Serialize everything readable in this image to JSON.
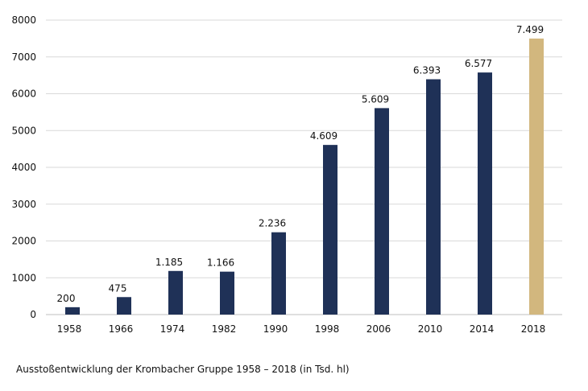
{
  "chart_data": {
    "type": "bar",
    "categories": [
      "1958",
      "1966",
      "1974",
      "1982",
      "1990",
      "1998",
      "2006",
      "2010",
      "2014",
      "2018"
    ],
    "values": [
      200,
      475,
      1185,
      1166,
      2236,
      4609,
      5609,
      6393,
      6577,
      7499
    ],
    "data_labels": [
      "200",
      "475",
      "1.185",
      "1.166",
      "2.236",
      "4.609",
      "5.609",
      "6.393",
      "6.577",
      "7.499"
    ],
    "yticks": [
      0,
      1000,
      2000,
      3000,
      4000,
      5000,
      6000,
      7000,
      8000
    ],
    "ylim": [
      0,
      8000
    ],
    "grid": true,
    "colors": {
      "default": "#1f3157",
      "highlight": "#d2b77e",
      "grid": "#d9d9d9",
      "axis": "#bfbfbf"
    },
    "highlight_category": "2018",
    "title": "",
    "xlabel": "",
    "ylabel": ""
  },
  "caption": "Ausstoßentwicklung der Krombacher Gruppe 1958 – 2018 (in Tsd. hl)"
}
